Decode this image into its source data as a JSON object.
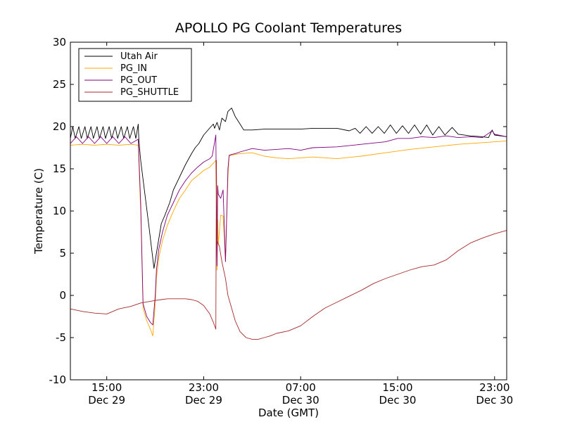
{
  "chart_data": {
    "type": "line",
    "title": "APOLLO PG Coolant Temperatures",
    "xlabel": "Date (GMT)",
    "ylabel": "Temperature (C)",
    "ylim": [
      -10,
      30
    ],
    "xlim": [
      12.0,
      48.0
    ],
    "x_unit": "hours since Dec 29 00:00 GMT",
    "yticks": [
      -10,
      -5,
      0,
      5,
      10,
      15,
      20,
      25,
      30
    ],
    "xticks": [
      {
        "x": 15,
        "label": "15:00",
        "sub": "Dec 29"
      },
      {
        "x": 23,
        "label": "23:00",
        "sub": "Dec 29"
      },
      {
        "x": 31,
        "label": "07:00",
        "sub": "Dec 30"
      },
      {
        "x": 39,
        "label": "15:00",
        "sub": "Dec 30"
      },
      {
        "x": 47,
        "label": "23:00",
        "sub": "Dec 30"
      }
    ],
    "legend_position": "top-left",
    "series": [
      {
        "name": "Utah Air",
        "color": "#000000",
        "x": [
          12.0,
          12.2,
          12.4,
          12.7,
          12.9,
          13.2,
          13.4,
          13.7,
          13.9,
          14.2,
          14.4,
          14.7,
          14.9,
          15.2,
          15.4,
          15.7,
          15.9,
          16.2,
          16.4,
          16.7,
          16.9,
          17.2,
          17.4,
          17.6,
          17.65,
          17.8,
          18.5,
          18.9,
          19.1,
          19.5,
          19.8,
          20.2,
          20.5,
          21.0,
          21.5,
          22.0,
          22.3,
          22.6,
          23.0,
          23.3,
          23.6,
          23.8,
          23.9,
          24.1,
          24.3,
          24.5,
          24.8,
          25.0,
          25.3,
          25.6,
          26.0,
          26.3,
          27.0,
          28.0,
          29.0,
          30.0,
          31.0,
          32.0,
          33.0,
          34.0,
          35.0,
          35.5,
          35.9,
          36.4,
          36.9,
          37.4,
          37.9,
          38.4,
          38.9,
          39.4,
          39.9,
          40.4,
          40.9,
          41.4,
          41.9,
          42.4,
          42.9,
          43.5,
          44.0,
          45.0,
          46.0,
          46.5,
          46.8,
          47.0,
          47.5,
          48.0
        ],
        "y": [
          18.6,
          20.0,
          18.6,
          20.0,
          18.6,
          20.0,
          18.6,
          20.0,
          18.6,
          20.0,
          18.6,
          20.0,
          18.6,
          20.0,
          18.6,
          20.0,
          18.6,
          20.0,
          18.6,
          20.0,
          18.6,
          20.0,
          18.6,
          20.3,
          18.4,
          16.0,
          8.0,
          3.2,
          5.0,
          8.5,
          9.5,
          11.0,
          12.5,
          14.0,
          15.5,
          16.8,
          17.5,
          18.0,
          19.0,
          19.5,
          20.0,
          20.3,
          19.8,
          20.5,
          19.6,
          21.0,
          20.6,
          21.8,
          22.2,
          21.2,
          20.3,
          19.6,
          19.6,
          19.7,
          19.7,
          19.7,
          19.7,
          19.8,
          19.8,
          19.8,
          19.5,
          19.8,
          19.2,
          20.0,
          19.2,
          20.0,
          19.2,
          20.2,
          19.2,
          20.1,
          19.2,
          20.2,
          19.1,
          20.2,
          19.0,
          20.0,
          19.0,
          19.9,
          19.1,
          18.9,
          18.8,
          18.7,
          19.6,
          19.0,
          18.9,
          18.8
        ]
      },
      {
        "name": "PG_IN",
        "color": "#ffa500",
        "x": [
          12.0,
          13.0,
          14.0,
          15.0,
          16.0,
          17.0,
          17.6,
          17.8,
          18.0,
          18.3,
          18.6,
          18.8,
          19.0,
          19.1,
          19.3,
          19.6,
          20.0,
          20.5,
          21.0,
          21.5,
          22.0,
          22.5,
          23.0,
          23.5,
          23.7,
          24.0,
          24.1,
          24.15,
          24.2,
          24.4,
          24.6,
          24.8,
          25.0,
          25.1,
          25.3,
          25.6,
          26.0,
          27.0,
          28.0,
          29.0,
          30.0,
          31.0,
          32.0,
          34.0,
          36.0,
          38.0,
          40.0,
          42.0,
          44.0,
          46.0,
          48.0
        ],
        "y": [
          17.8,
          17.9,
          17.8,
          17.9,
          17.8,
          17.9,
          17.8,
          10.0,
          -1.5,
          -3.0,
          -4.0,
          -4.8,
          -1.0,
          2.0,
          4.5,
          6.5,
          8.3,
          10.0,
          11.5,
          12.5,
          13.6,
          14.2,
          14.8,
          15.2,
          15.5,
          16.0,
          3.0,
          9.0,
          6.0,
          9.5,
          9.4,
          4.0,
          14.0,
          16.5,
          16.6,
          16.7,
          16.8,
          16.9,
          16.5,
          16.3,
          16.2,
          16.3,
          16.4,
          16.2,
          16.5,
          16.9,
          17.3,
          17.6,
          17.9,
          18.1,
          18.3
        ]
      },
      {
        "name": "PG_OUT",
        "color": "#800080",
        "x": [
          12.0,
          12.5,
          13.0,
          13.5,
          14.0,
          14.5,
          15.0,
          15.5,
          16.0,
          16.5,
          17.0,
          17.6,
          17.8,
          18.0,
          18.3,
          18.6,
          18.8,
          19.0,
          19.1,
          19.3,
          19.6,
          20.0,
          20.5,
          21.0,
          21.5,
          22.0,
          22.5,
          23.0,
          23.5,
          23.7,
          24.0,
          24.1,
          24.15,
          24.2,
          24.4,
          24.6,
          24.8,
          25.0,
          25.1,
          25.3,
          25.6,
          26.0,
          27.0,
          28.0,
          29.0,
          30.0,
          31.0,
          32.0,
          34.0,
          36.0,
          38.0,
          39.0,
          40.0,
          41.0,
          42.0,
          43.0,
          44.0,
          45.0,
          46.0,
          46.8,
          47.0,
          48.0
        ],
        "y": [
          18.0,
          18.8,
          18.0,
          18.8,
          18.0,
          18.8,
          18.0,
          18.8,
          18.0,
          18.8,
          18.0,
          18.5,
          11.0,
          -1.0,
          -2.5,
          -3.2,
          -3.5,
          0.0,
          3.0,
          5.5,
          7.5,
          9.5,
          11.0,
          12.5,
          13.6,
          14.5,
          15.2,
          15.8,
          16.2,
          16.5,
          19.0,
          3.5,
          13.0,
          12.0,
          11.5,
          12.5,
          4.0,
          15.0,
          16.6,
          16.7,
          16.8,
          17.0,
          17.4,
          17.2,
          17.3,
          17.4,
          17.2,
          17.5,
          17.6,
          17.9,
          18.2,
          18.6,
          18.6,
          18.8,
          18.7,
          18.9,
          18.7,
          18.8,
          18.7,
          19.5,
          19.1,
          18.8
        ]
      },
      {
        "name": "PG_SHUTTLE",
        "color": "#a52a2a",
        "x": [
          12.0,
          13.0,
          14.0,
          15.0,
          16.0,
          17.0,
          17.8,
          18.2,
          18.6,
          19.0,
          19.5,
          20.0,
          20.5,
          21.0,
          21.5,
          22.0,
          22.5,
          23.0,
          23.5,
          23.8,
          24.0,
          24.05,
          24.1,
          24.3,
          24.5,
          24.8,
          25.0,
          25.3,
          25.6,
          26.0,
          26.5,
          27.0,
          27.5,
          28.0,
          28.5,
          29.0,
          30.0,
          31.0,
          32.0,
          33.0,
          34.0,
          35.0,
          36.0,
          37.0,
          38.0,
          39.0,
          40.0,
          41.0,
          42.0,
          43.0,
          44.0,
          45.0,
          46.0,
          47.0,
          48.0
        ],
        "y": [
          -1.6,
          -1.9,
          -2.1,
          -2.2,
          -1.6,
          -1.3,
          -0.9,
          -0.8,
          -0.7,
          -0.6,
          -0.5,
          -0.4,
          -0.4,
          -0.4,
          -0.4,
          -0.5,
          -0.7,
          -1.2,
          -2.2,
          -3.2,
          -4.0,
          16.0,
          6.5,
          5.8,
          4.0,
          2.0,
          0.0,
          -1.5,
          -3.0,
          -4.3,
          -5.0,
          -5.2,
          -5.2,
          -5.0,
          -4.8,
          -4.5,
          -4.2,
          -3.6,
          -2.5,
          -1.5,
          -0.8,
          -0.1,
          0.6,
          1.4,
          2.0,
          2.5,
          3.0,
          3.4,
          3.6,
          4.2,
          5.3,
          6.2,
          6.8,
          7.3,
          7.7
        ]
      }
    ]
  }
}
